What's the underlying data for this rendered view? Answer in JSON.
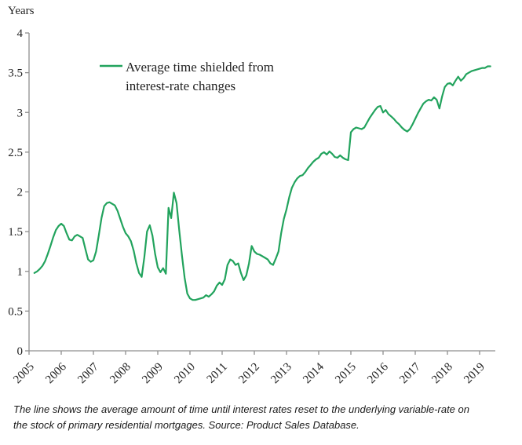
{
  "chart": {
    "y_axis_title": "Years",
    "legend": {
      "line1": "Average time shielded from",
      "line2": "interest-rate changes"
    }
  },
  "footnote": {
    "line1": "The line shows the average amount of time until interest rates reset to the underlying variable-rate on",
    "line2": "the stock of primary residential mortgages. Source: Product Sales Database."
  },
  "chart_data": {
    "type": "line",
    "title": "",
    "ylabel": "Years",
    "xlabel": "",
    "ylim": [
      0,
      4
    ],
    "ytick_step": 0.5,
    "grid": false,
    "legend_position": "top-left-inside",
    "line_color": "#22a35d",
    "axis_color": "#8f8f8f",
    "text_color": "#1f1f1f",
    "x_tick_years": [
      2005,
      2006,
      2007,
      2008,
      2009,
      2010,
      2011,
      2012,
      2013,
      2014,
      2015,
      2016,
      2017,
      2018,
      2019
    ],
    "series_name": "Average time shielded from interest-rate changes",
    "start": "2005-03",
    "freq": "monthly",
    "values": [
      0.98,
      1.0,
      1.03,
      1.07,
      1.13,
      1.22,
      1.32,
      1.43,
      1.52,
      1.57,
      1.6,
      1.57,
      1.48,
      1.4,
      1.39,
      1.44,
      1.46,
      1.44,
      1.42,
      1.28,
      1.15,
      1.12,
      1.14,
      1.25,
      1.45,
      1.67,
      1.82,
      1.86,
      1.87,
      1.85,
      1.83,
      1.76,
      1.66,
      1.56,
      1.48,
      1.44,
      1.38,
      1.26,
      1.1,
      0.98,
      0.93,
      1.18,
      1.5,
      1.58,
      1.45,
      1.22,
      1.05,
      0.99,
      1.04,
      0.97,
      1.8,
      1.67,
      1.99,
      1.86,
      1.52,
      1.2,
      0.92,
      0.72,
      0.66,
      0.64,
      0.64,
      0.65,
      0.66,
      0.67,
      0.7,
      0.68,
      0.71,
      0.75,
      0.82,
      0.86,
      0.83,
      0.9,
      1.08,
      1.15,
      1.13,
      1.08,
      1.1,
      0.98,
      0.89,
      0.95,
      1.1,
      1.32,
      1.25,
      1.22,
      1.21,
      1.19,
      1.17,
      1.15,
      1.1,
      1.08,
      1.16,
      1.25,
      1.48,
      1.66,
      1.78,
      1.93,
      2.05,
      2.12,
      2.17,
      2.2,
      2.21,
      2.25,
      2.3,
      2.34,
      2.38,
      2.41,
      2.43,
      2.48,
      2.5,
      2.47,
      2.51,
      2.48,
      2.44,
      2.43,
      2.46,
      2.43,
      2.41,
      2.4,
      2.75,
      2.79,
      2.81,
      2.8,
      2.79,
      2.81,
      2.87,
      2.93,
      2.98,
      3.03,
      3.07,
      3.08,
      3.0,
      3.03,
      2.98,
      2.95,
      2.92,
      2.88,
      2.85,
      2.81,
      2.78,
      2.76,
      2.79,
      2.85,
      2.92,
      2.99,
      3.05,
      3.11,
      3.14,
      3.16,
      3.15,
      3.19,
      3.16,
      3.05,
      3.2,
      3.32,
      3.36,
      3.37,
      3.34,
      3.4,
      3.45,
      3.4,
      3.43,
      3.48,
      3.5,
      3.52,
      3.53,
      3.54,
      3.55,
      3.56,
      3.56,
      3.58,
      3.58
    ]
  }
}
